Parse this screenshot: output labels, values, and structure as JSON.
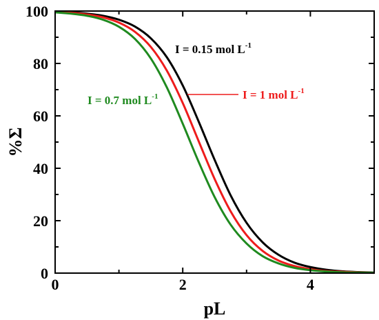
{
  "chart_data": {
    "type": "line",
    "xlabel": "pL",
    "ylabel": "%Σ",
    "xlim": [
      0,
      5
    ],
    "ylim": [
      0,
      100
    ],
    "x_ticks": [
      "0",
      "2",
      "4"
    ],
    "y_ticks": [
      "0",
      "20",
      "40",
      "60",
      "80",
      "100"
    ],
    "grid": false,
    "legend": "none",
    "series": [
      {
        "label_main": "I = 0.15 mol L",
        "label_sup": "-1",
        "color": "#000000",
        "x": [
          0,
          0.25,
          0.5,
          0.75,
          1.0,
          1.25,
          1.5,
          1.75,
          2.0,
          2.25,
          2.5,
          2.75,
          3.0,
          3.25,
          3.5,
          3.75,
          4.0,
          4.25,
          4.5,
          4.75,
          5.0
        ],
        "y": [
          99.7,
          99.5,
          99.0,
          98.2,
          96.7,
          94.1,
          89.6,
          82.4,
          71.6,
          57.8,
          43.2,
          29.7,
          19.2,
          11.8,
          7.0,
          4.0,
          2.3,
          1.3,
          0.7,
          0.4,
          0.2
        ]
      },
      {
        "label_main": "I = 1 mol L",
        "label_sup": "-1",
        "color": "#ee1c1c",
        "x": [
          0,
          0.25,
          0.5,
          0.75,
          1.0,
          1.25,
          1.5,
          1.75,
          2.0,
          2.25,
          2.5,
          2.75,
          3.0,
          3.25,
          3.5,
          3.75,
          4.0,
          4.25,
          4.5,
          4.75,
          5.0
        ],
        "y": [
          99.6,
          99.3,
          98.7,
          97.6,
          95.6,
          92.1,
          86.3,
          77.3,
          64.9,
          50.3,
          35.9,
          23.6,
          14.5,
          8.5,
          4.8,
          2.7,
          1.5,
          0.8,
          0.5,
          0.3,
          0.1
        ]
      },
      {
        "label_main": "I = 0.7 mol L",
        "label_sup": "-1",
        "color": "#1f8a1f",
        "x": [
          0,
          0.25,
          0.5,
          0.75,
          1.0,
          1.25,
          1.5,
          1.75,
          2.0,
          2.25,
          2.5,
          2.75,
          3.0,
          3.25,
          3.5,
          3.75,
          4.0,
          4.25,
          4.5,
          4.75,
          5.0
        ],
        "y": [
          99.5,
          99.0,
          98.2,
          96.7,
          94.0,
          89.4,
          81.9,
          70.9,
          57.0,
          42.4,
          29.0,
          18.5,
          11.3,
          6.5,
          3.7,
          2.0,
          1.1,
          0.6,
          0.3,
          0.2,
          0.1
        ]
      }
    ]
  }
}
